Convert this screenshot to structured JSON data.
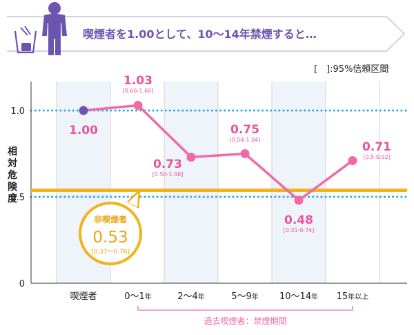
{
  "header": {
    "title": "喫煙者を1.00として、10〜14年禁煙すると…",
    "note": "[　]:95%信頼区間"
  },
  "chart_data": {
    "type": "line",
    "ylabel": "相対危険度",
    "yticks": [
      "1.0",
      "0.5",
      "0"
    ],
    "ylim": [
      0,
      1.1
    ],
    "reference_lines": [
      1.0,
      0.5
    ],
    "categories": [
      "喫煙者",
      "0〜1年",
      "2〜4年",
      "5〜9年",
      "10〜14年",
      "15年以上"
    ],
    "x_tick_labels": [
      {
        "main": "喫煙者",
        "suffix": ""
      },
      {
        "main": "0〜1",
        "suffix": "年"
      },
      {
        "main": "2〜4",
        "suffix": "年"
      },
      {
        "main": "5〜9",
        "suffix": "年"
      },
      {
        "main": "10〜14",
        "suffix": "年"
      },
      {
        "main": "15",
        "suffix": "年以上"
      }
    ],
    "x_group_label": "過去喫煙者：禁煙期間",
    "series": [
      {
        "values": [
          1.0,
          1.03,
          0.73,
          0.75,
          0.48,
          0.71
        ],
        "value_labels": [
          "1.00",
          "1.03",
          "0.73",
          "0.75",
          "0.48",
          "0.71"
        ],
        "ci_labels": [
          "",
          "[0.66-1.60]",
          "[0.50-1.06]",
          "[0.54-1.04]",
          "[0.31-0.74]",
          "[0.5-0.92]"
        ]
      }
    ],
    "baseline": {
      "value": 0.53,
      "name": "非喫煙者",
      "value_label": "0.53",
      "ci_label": "[0.37〜0.76]"
    },
    "colors": {
      "line": "#ef6aa6",
      "first_point": "#6c55b0",
      "baseline": "#f2b21e",
      "reference": "#2ea7dd",
      "band": "#eef4fa",
      "header_icon": "#6c55b0"
    }
  }
}
